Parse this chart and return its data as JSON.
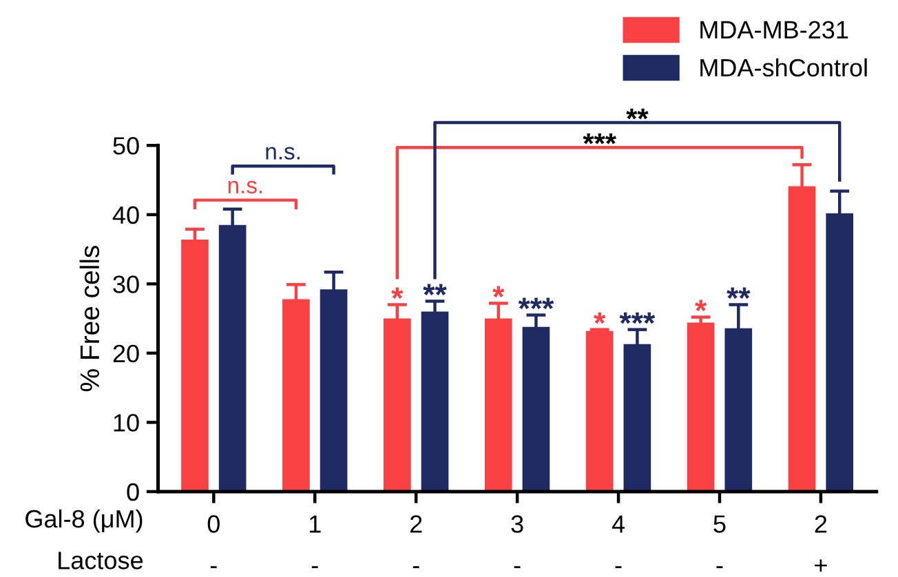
{
  "chart_data": {
    "type": "bar",
    "ylabel": "% Free cells",
    "categories": [
      "0\n-",
      "1\n-",
      "2\n-",
      "3\n-",
      "4\n-",
      "5\n-",
      "2\n+"
    ],
    "series": [
      {
        "name": "MDA-MB-231",
        "color": "#f94144",
        "values": [
          36.4,
          27.8,
          25.0,
          25.0,
          23.2,
          24.4,
          44.1
        ],
        "errors": [
          1.5,
          2.1,
          2.0,
          2.2,
          0.2,
          0.8,
          3.1
        ]
      },
      {
        "name": "MDA-shControl",
        "color": "#1f2a63",
        "values": [
          38.5,
          29.2,
          26.0,
          23.8,
          21.3,
          23.6,
          40.2
        ],
        "errors": [
          2.3,
          2.5,
          1.5,
          1.7,
          2.1,
          3.4,
          3.2
        ]
      }
    ],
    "ylim": [
      0,
      50
    ],
    "yticks": [
      0,
      10,
      20,
      30,
      40,
      50
    ],
    "legend": "top right",
    "annotations": [
      "Gal-8 (μM)",
      "Lactose",
      "n.s.",
      "n.s.",
      "***",
      "**",
      "*",
      "**",
      "*",
      "***",
      "*",
      "***",
      "*",
      "**"
    ]
  }
}
